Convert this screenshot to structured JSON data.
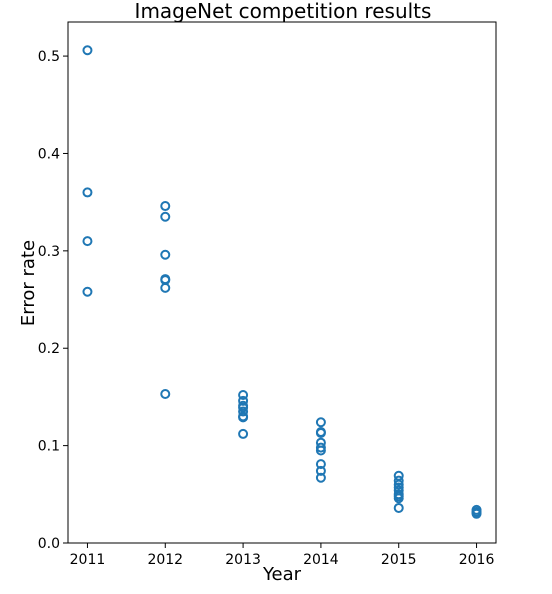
{
  "chart_data": {
    "type": "scatter",
    "title": "ImageNet competition results",
    "xlabel": "Year",
    "ylabel": "Error rate",
    "xlim": [
      2010.75,
      2016.25
    ],
    "ylim": [
      0.0,
      0.535
    ],
    "x_ticks": [
      2011,
      2012,
      2013,
      2014,
      2015,
      2016
    ],
    "x_tick_labels": [
      "2011",
      "2012",
      "2013",
      "2014",
      "2015",
      "2016"
    ],
    "y_ticks": [
      0.0,
      0.1,
      0.2,
      0.3,
      0.4,
      0.5
    ],
    "y_tick_labels": [
      "0.0",
      "0.1",
      "0.2",
      "0.3",
      "0.4",
      "0.5"
    ],
    "grid": false,
    "marker": "open-circle",
    "marker_color": "#1f77b4",
    "series": [
      {
        "x": [
          2011,
          2011,
          2011,
          2011,
          2012,
          2012,
          2012,
          2012,
          2012,
          2012,
          2012,
          2013,
          2013,
          2013,
          2013,
          2013,
          2013,
          2013,
          2013,
          2014,
          2014,
          2014,
          2014,
          2014,
          2014,
          2014,
          2014,
          2014,
          2015,
          2015,
          2015,
          2015,
          2015,
          2015,
          2015,
          2015,
          2015,
          2016,
          2016,
          2016,
          2016
        ],
        "y": [
          0.506,
          0.36,
          0.31,
          0.258,
          0.346,
          0.335,
          0.296,
          0.271,
          0.27,
          0.262,
          0.153,
          0.152,
          0.146,
          0.141,
          0.139,
          0.135,
          0.13,
          0.129,
          0.112,
          0.124,
          0.114,
          0.113,
          0.103,
          0.098,
          0.095,
          0.081,
          0.074,
          0.067,
          0.069,
          0.064,
          0.06,
          0.057,
          0.054,
          0.05,
          0.048,
          0.046,
          0.036,
          0.034,
          0.032,
          0.031,
          0.03
        ]
      }
    ]
  }
}
